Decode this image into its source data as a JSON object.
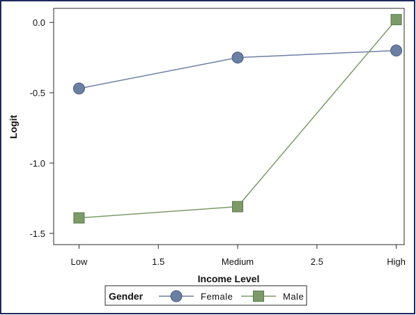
{
  "chart_data": {
    "type": "line",
    "xlabel": "Income Level",
    "ylabel": "Logit",
    "x_ticks": [
      {
        "value": 1,
        "label": "Low"
      },
      {
        "value": 1.5,
        "label": "1.5"
      },
      {
        "value": 2,
        "label": "Medium"
      },
      {
        "value": 2.5,
        "label": "2.5"
      },
      {
        "value": 3,
        "label": "High"
      }
    ],
    "y_ticks": [
      {
        "value": 0,
        "label": "0.0"
      },
      {
        "value": -0.5,
        "label": "-0.5"
      },
      {
        "value": -1.0,
        "label": "-1.0"
      },
      {
        "value": -1.5,
        "label": "-1.5"
      }
    ],
    "xlim": [
      0.84,
      3.05
    ],
    "ylim": [
      -1.58,
      0.1
    ],
    "grid": false,
    "legend": {
      "title": "Gender",
      "placement": "bottom"
    },
    "series": [
      {
        "name": "Female",
        "marker": "circle",
        "color": "#6b7fa3",
        "x": [
          1,
          2,
          3
        ],
        "y": [
          -0.47,
          -0.25,
          -0.2
        ]
      },
      {
        "name": "Male",
        "marker": "square",
        "color": "#7c9a6a",
        "x": [
          1,
          2,
          3
        ],
        "y": [
          -1.39,
          -1.31,
          0.02
        ]
      }
    ]
  }
}
